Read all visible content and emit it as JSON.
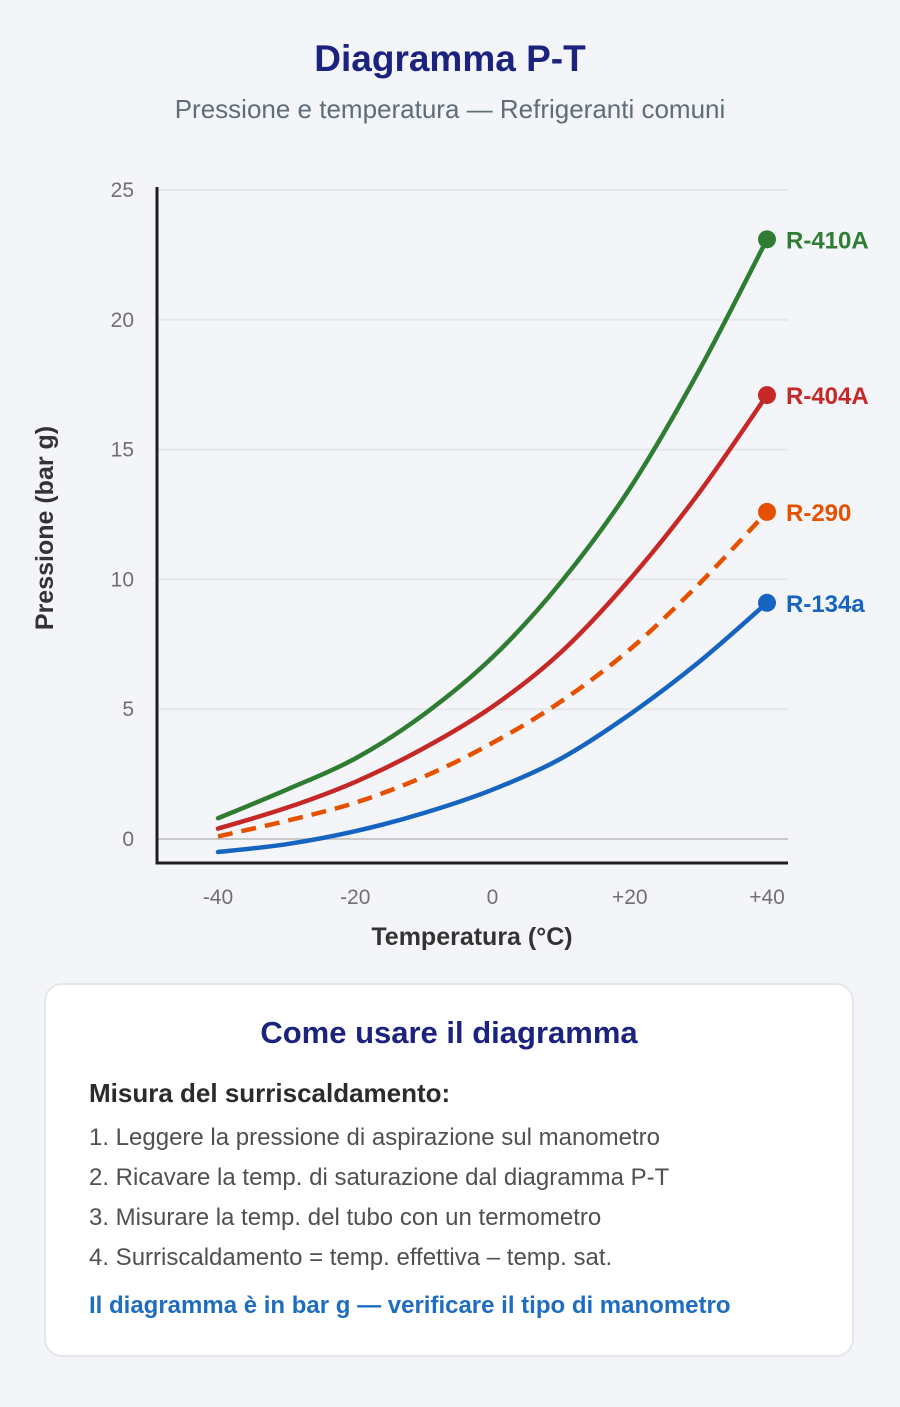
{
  "header": {
    "title": "Diagramma P-T",
    "subtitle": "Pressione e temperatura — Refrigeranti comuni"
  },
  "chart_data": {
    "type": "line",
    "xlabel": "Temperatura (°C)",
    "ylabel": "Pressione (bar g)",
    "xlim": [
      -40,
      40
    ],
    "ylim": [
      0,
      25
    ],
    "x_tick_labels": [
      "-40",
      "-20",
      "0",
      "+20",
      "+40"
    ],
    "y_tick_labels": [
      "0",
      "5",
      "10",
      "15",
      "20",
      "25"
    ],
    "grid": true,
    "x": [
      -40,
      -30,
      -20,
      -10,
      0,
      10,
      20,
      30,
      40
    ],
    "series": [
      {
        "name": "R-410A",
        "color": "#2e7d32",
        "dashed": false,
        "end_marker": true,
        "values": [
          0.8,
          1.9,
          3.1,
          4.8,
          7.0,
          9.9,
          13.5,
          18.0,
          23.1
        ]
      },
      {
        "name": "R-404A",
        "color": "#c62828",
        "dashed": false,
        "end_marker": true,
        "values": [
          0.4,
          1.2,
          2.2,
          3.5,
          5.1,
          7.2,
          10.0,
          13.3,
          17.1
        ]
      },
      {
        "name": "R-290",
        "color": "#e65100",
        "dashed": true,
        "end_marker": true,
        "values": [
          0.1,
          0.7,
          1.4,
          2.4,
          3.7,
          5.3,
          7.3,
          9.8,
          12.6
        ]
      },
      {
        "name": "R-134a",
        "color": "#1565c0",
        "dashed": false,
        "end_marker": true,
        "values": [
          -0.5,
          -0.2,
          0.3,
          1.0,
          1.9,
          3.1,
          4.8,
          6.8,
          9.1
        ]
      }
    ]
  },
  "card": {
    "title": "Come usare il diagramma",
    "heading": "Misura del surriscaldamento:",
    "steps": [
      "1. Leggere la pressione di aspirazione sul manometro",
      "2. Ricavare la temp. di saturazione dal diagramma P-T",
      "3. Misurare la temp. del tubo con un termometro",
      "4. Surriscaldamento = temp. effettiva – temp. sat."
    ],
    "note": "Il diagramma è in bar g — verificare il tipo di manometro"
  }
}
